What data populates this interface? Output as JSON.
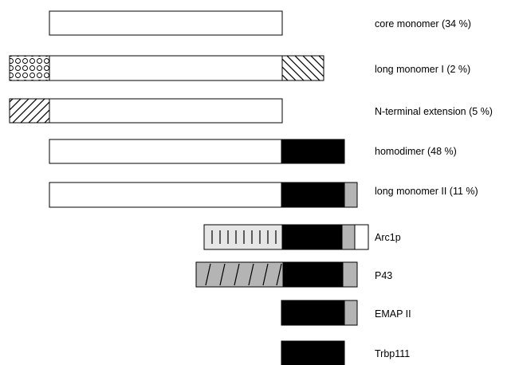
{
  "rows": [
    {
      "id": "core-monomer",
      "label": "core monomer (34 %)"
    },
    {
      "id": "long-monomer-1",
      "label": "long monomer I (2 %)"
    },
    {
      "id": "n-terminal-extension",
      "label": "N-terminal extension (5 %)"
    },
    {
      "id": "homodimer",
      "label": "homodimer (48 %)"
    },
    {
      "id": "long-monomer-2",
      "label": "long monomer II (11 %)"
    },
    {
      "id": "arc1p",
      "label": "Arc1p"
    },
    {
      "id": "p43",
      "label": "P43"
    },
    {
      "id": "emap-2",
      "label": "EMAP II"
    },
    {
      "id": "trbp111",
      "label": "Trbp111"
    }
  ],
  "colors": {
    "outline": "#000000",
    "core": "#ffffff",
    "black_domain": "#000000",
    "gray_domain": "#b4b4b4",
    "light_domain": "#e6e6e6"
  },
  "segment_patterns": [
    "plain",
    "circles",
    "back-diagonal",
    "forward-diagonal",
    "black",
    "gray",
    "vertical-ticks",
    "gray-slashes"
  ]
}
